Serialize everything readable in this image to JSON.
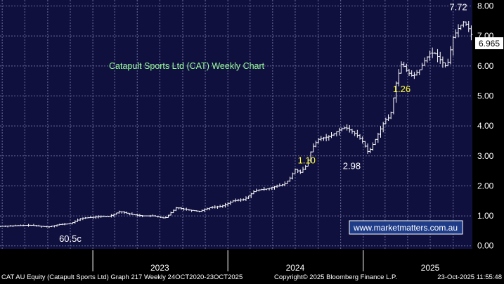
{
  "colors": {
    "background": "#000000",
    "plot_background": "#10103f",
    "grid": "#6b6b9a",
    "candles": "#ffffff",
    "annotation_yellow": "#ffff33",
    "annotation_white": "#ffffff",
    "title_text": "#99ff99",
    "last_price_box": "#ffffff",
    "watermark_border": "#ffffff",
    "watermark_text": "#ffffff",
    "watermark_fill": "#1f3c88"
  },
  "chart_data": {
    "type": "line",
    "title": "Catapult Sports Ltd (CAT) Weekly Chart",
    "xlabel": "",
    "ylabel": "",
    "y_axis_side": "right",
    "ylim": [
      -0.1,
      8.2
    ],
    "y_ticks": [
      "0.00",
      "1.00",
      "2.00",
      "3.00",
      "4.00",
      "5.00",
      "6.00",
      "7.00",
      "8.00"
    ],
    "x_range": [
      "2022-04-25",
      "2025-10-23"
    ],
    "x_tick_labels": [
      "2023",
      "2024",
      "2025"
    ],
    "x_tick_label_dates": [
      "2023-07-01",
      "2024-07-01",
      "2025-07-01"
    ],
    "year_separators": [
      "2023-01-01",
      "2024-01-01",
      "2025-01-01"
    ],
    "grid": true,
    "last_price": "6.965",
    "series": [
      {
        "x": [
          "2022-04-25",
          "2022-06-01",
          "2022-07-15",
          "2022-09-01",
          "2022-10-01",
          "2022-11-01",
          "2022-12-01",
          "2023-01-15",
          "2023-02-15",
          "2023-03-15",
          "2023-04-15",
          "2023-05-15",
          "2023-06-15",
          "2023-07-15",
          "2023-08-15",
          "2023-09-15",
          "2023-10-15",
          "2023-11-15",
          "2023-12-15",
          "2024-01-15",
          "2024-02-15",
          "2024-03-15",
          "2024-04-15",
          "2024-05-15",
          "2024-06-01",
          "2024-06-15",
          "2024-07-01",
          "2024-07-15",
          "2024-08-01",
          "2024-08-15",
          "2024-09-01",
          "2024-09-15",
          "2024-10-01",
          "2024-10-15",
          "2024-11-01",
          "2024-11-15",
          "2024-12-01",
          "2024-12-15",
          "2025-01-01",
          "2025-01-15",
          "2025-02-01",
          "2025-02-15",
          "2025-03-01",
          "2025-03-15",
          "2025-04-01",
          "2025-04-15",
          "2025-05-01",
          "2025-05-15",
          "2025-06-01",
          "2025-06-15",
          "2025-07-01",
          "2025-07-15",
          "2025-08-01",
          "2025-08-15",
          "2025-09-01",
          "2025-09-15",
          "2025-10-01",
          "2025-10-15",
          "2025-10-23"
        ],
        "values": [
          0.65,
          0.67,
          0.69,
          0.63,
          0.71,
          0.74,
          0.92,
          0.97,
          0.99,
          1.15,
          1.05,
          1.0,
          1.0,
          0.92,
          1.28,
          1.2,
          1.15,
          1.28,
          1.32,
          1.5,
          1.55,
          1.85,
          1.9,
          2.0,
          2.05,
          2.22,
          2.55,
          2.45,
          2.7,
          3.25,
          3.55,
          3.6,
          3.65,
          3.75,
          3.9,
          3.95,
          3.82,
          3.7,
          3.45,
          3.1,
          3.5,
          3.85,
          4.2,
          4.3,
          5.5,
          6.1,
          5.8,
          5.65,
          5.85,
          6.15,
          6.45,
          6.4,
          6.15,
          5.95,
          6.95,
          7.25,
          7.5,
          7.2,
          6.965
        ]
      }
    ],
    "annotations": [
      {
        "text": "60.5c",
        "x": "2022-11-01",
        "y": 0.605,
        "color": "white"
      },
      {
        "text": "1.10",
        "x": "2024-08-01",
        "y": 3.17,
        "color": "yellow"
      },
      {
        "text": "2.98",
        "x": "2024-12-01",
        "y": 2.98,
        "color": "white"
      },
      {
        "text": "7.72",
        "x": "2025-09-15",
        "y": 7.72,
        "color": "white"
      },
      {
        "text": "1.26",
        "x": "2025-04-15",
        "y": 5.55,
        "color": "yellow"
      }
    ]
  },
  "watermark": "www.marketmatters.com.au",
  "footer": {
    "left": "CAT AU Equity (Catapult Sports Ltd) Graph 217 Weekly 24OCT2020-23OCT2025",
    "middle": "Copyright© 2025 Bloomberg Finance L.P.",
    "right": "23-Oct-2025 11:55:48"
  }
}
